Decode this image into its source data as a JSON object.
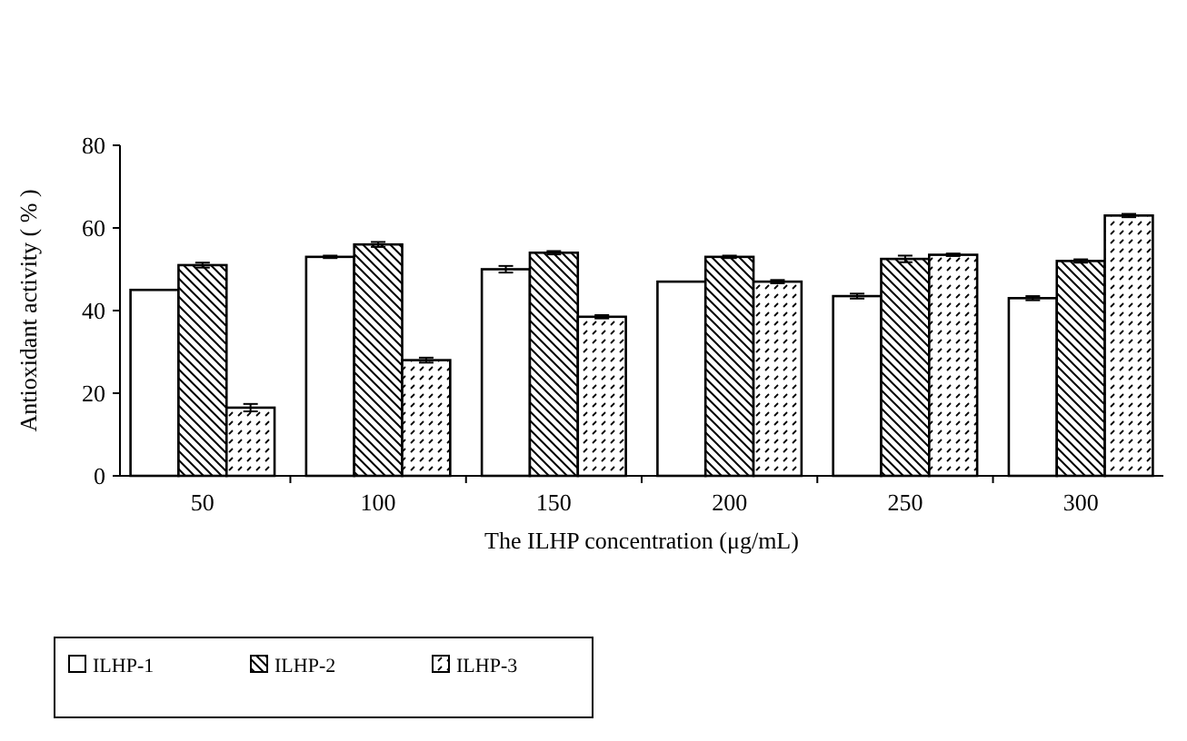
{
  "chart_data": {
    "type": "bar",
    "xlabel": "The ILHP concentration (μg/mL)",
    "ylabel": "Antioxidant activity ( % )",
    "categories": [
      "50",
      "100",
      "150",
      "200",
      "250",
      "300"
    ],
    "series": [
      {
        "name": "ILHP-1",
        "color": "#ffffff",
        "values": [
          45,
          53,
          50,
          47,
          43.5,
          43
        ],
        "errors": [
          null,
          0.3,
          0.8,
          null,
          0.6,
          0.5
        ]
      },
      {
        "name": "ILHP-2",
        "color": "#000000",
        "values": [
          51,
          56,
          54,
          53,
          52.5,
          52
        ],
        "errors": [
          0.6,
          0.6,
          0.4,
          0.3,
          0.8,
          0.4
        ]
      },
      {
        "name": "ILHP-3",
        "color": "#000000",
        "values": [
          16.5,
          28,
          38.5,
          47,
          53.5,
          63
        ],
        "errors": [
          0.9,
          0.6,
          0.4,
          0.4,
          0.3,
          0.4
        ]
      }
    ],
    "ylim": [
      0,
      80
    ],
    "yticks": [
      0,
      20,
      40,
      60,
      80
    ],
    "legend": "bottom"
  }
}
